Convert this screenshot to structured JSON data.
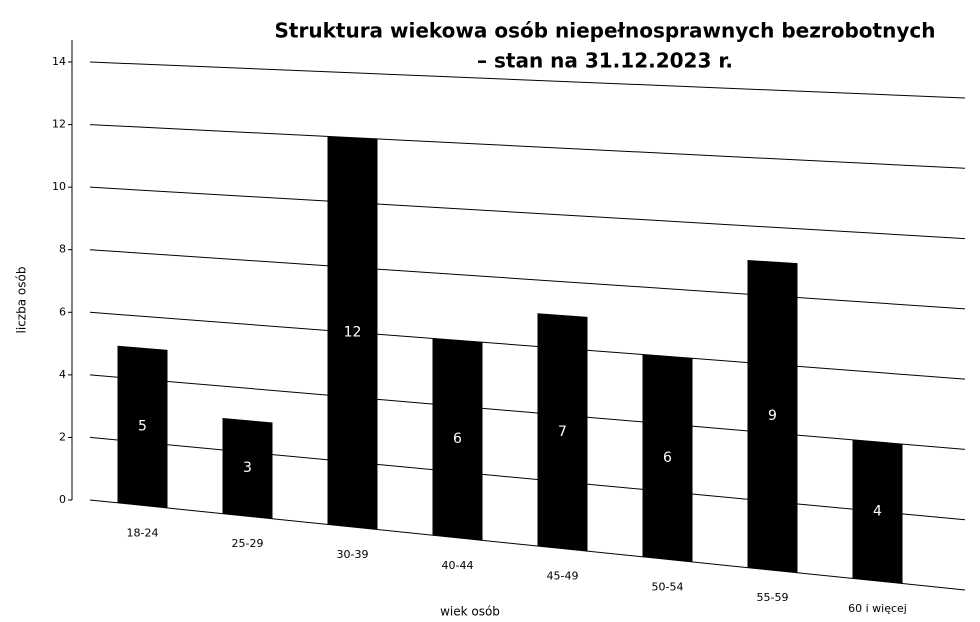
{
  "chart_data": {
    "type": "bar",
    "title": "Struktura wiekowa osób niepełnosprawnych bezrobotnych",
    "subtitle": "– stan na 31.12.2023 r.",
    "x_label": "wiek osób",
    "y_label": "liczba osób",
    "categories": [
      "18-24",
      "25-29",
      "30-39",
      "40-44",
      "45-49",
      "50-54",
      "55-59",
      "60 i więcej"
    ],
    "values": [
      5,
      3,
      12,
      6,
      7,
      6,
      9,
      4
    ],
    "color": "#000000",
    "ylim": [
      0,
      14
    ],
    "yticks": [
      0,
      2,
      4,
      6,
      8,
      10,
      12,
      14
    ],
    "grid": true
  }
}
